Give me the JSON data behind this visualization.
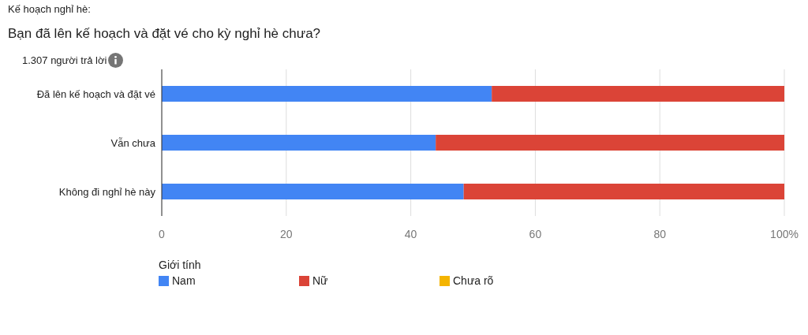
{
  "chart_data": {
    "type": "bar",
    "orientation": "horizontal",
    "stacked": true,
    "annotations": [
      "Kế hoạch nghỉ hè:"
    ],
    "title": "Bạn đã lên kế hoạch và đặt vé cho kỳ nghỉ hè chưa?",
    "subtitle": "1.307 người trả lời",
    "categories": [
      "Đã lên kế hoạch và đặt vé",
      "Vẫn chưa",
      "Không đi nghỉ hè này"
    ],
    "series": [
      {
        "name": "Nam",
        "color": "#4285f4",
        "values": [
          53,
          44,
          48.5
        ]
      },
      {
        "name": "Nữ",
        "color": "#db4437",
        "values": [
          47,
          56,
          51.5
        ]
      },
      {
        "name": "Chưa rõ",
        "color": "#f4b400",
        "values": [
          0,
          0,
          0
        ]
      }
    ],
    "xlim": [
      0,
      100
    ],
    "xticks": [
      0,
      20,
      40,
      60,
      {
        "value": 100,
        "label": "100%"
      },
      80
    ],
    "grid": "x",
    "legend": "bottom",
    "legend_title": "Giới tính"
  }
}
